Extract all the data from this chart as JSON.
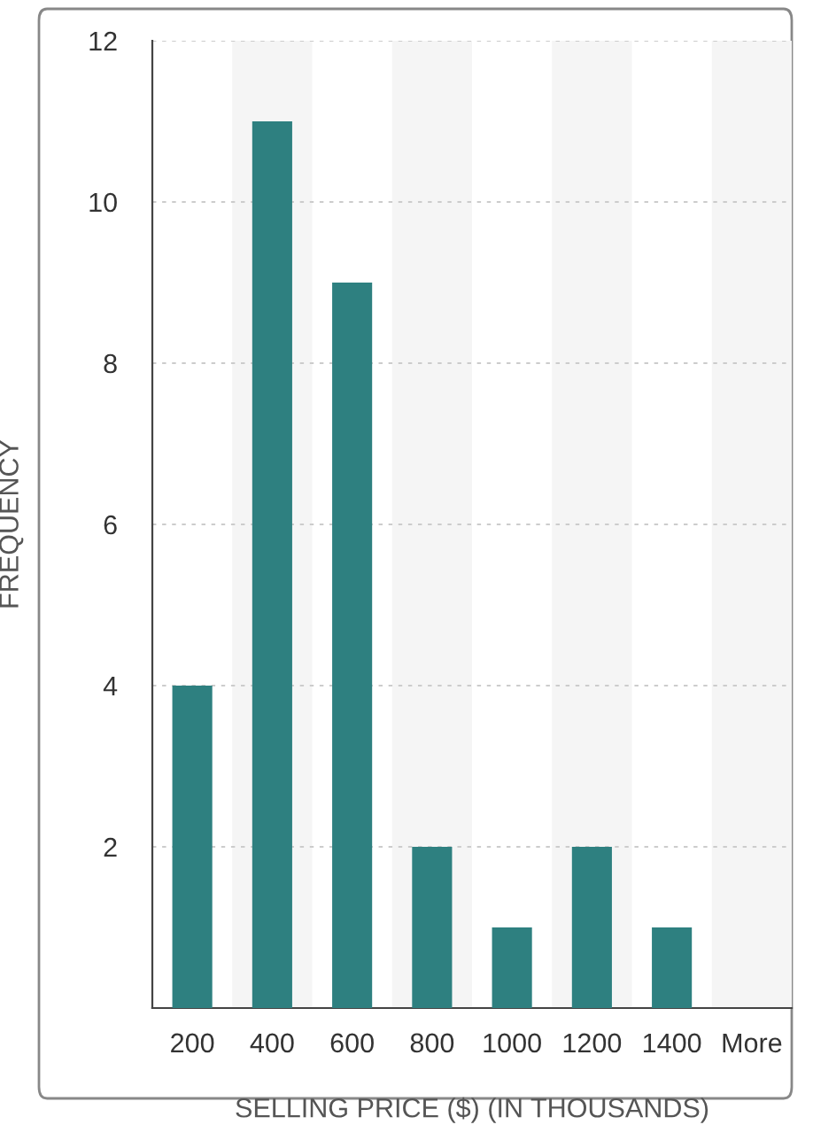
{
  "chart_data": {
    "type": "bar",
    "xlabel": "SELLING PRICE ($) (IN THOUSANDS)",
    "ylabel": "FREQUENCY",
    "categories": [
      "200",
      "400",
      "600",
      "800",
      "1000",
      "1200",
      "1400",
      "More"
    ],
    "values": [
      4,
      11,
      9,
      2,
      1,
      2,
      1,
      0
    ],
    "color": "#2e8080",
    "ylim": [
      0,
      12
    ],
    "yticks": [
      {
        "value": 0,
        "label": null
      },
      2,
      4,
      6,
      8,
      10,
      12
    ],
    "grid": "y"
  }
}
